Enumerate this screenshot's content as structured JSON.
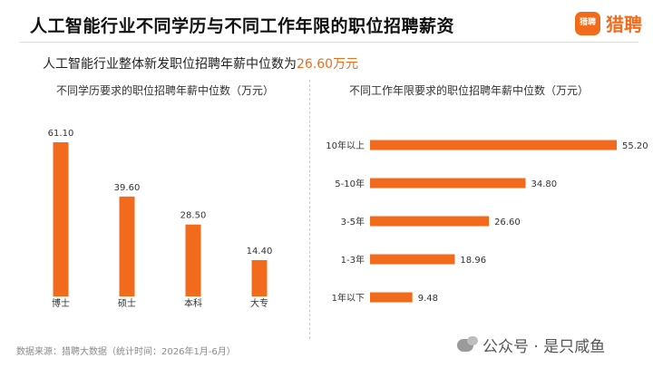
{
  "header": {
    "title": "人工智能行业不同学历与不同工作年限的职位招聘薪资",
    "subtitle_prefix": "人工智能行业整体新发职位招聘年薪中位数为",
    "subtitle_value": "26.60万元"
  },
  "logo": {
    "icon_text": "猎聘",
    "text": "猎聘"
  },
  "colors": {
    "bar": "#f26b1c",
    "accent": "#f26b1c",
    "text": "#222222"
  },
  "footer": {
    "source": "数据来源：猎聘大数据（统计时间：2026年1月-6月）",
    "watermark": "公众号 · 是只咸鱼"
  },
  "chart_data": [
    {
      "type": "bar",
      "orientation": "vertical",
      "title": "不同学历要求的职位招聘年薪中位数（万元）",
      "categories": [
        "博士",
        "硕士",
        "本科",
        "大专"
      ],
      "values": [
        61.1,
        39.6,
        28.5,
        14.4
      ],
      "value_labels": [
        "61.10",
        "39.60",
        "28.50",
        "14.40"
      ],
      "xlabel": "",
      "ylabel": "",
      "grid": false
    },
    {
      "type": "bar",
      "orientation": "horizontal",
      "title": "不同工作年限要求的职位招聘年薪中位数（万元）",
      "categories": [
        "10年以上",
        "5-10年",
        "3-5年",
        "1-3年",
        "1年以下"
      ],
      "values": [
        55.2,
        34.8,
        26.6,
        18.96,
        9.48
      ],
      "value_labels": [
        "55.20",
        "34.80",
        "26.60",
        "18.96",
        "9.48"
      ],
      "xlabel": "",
      "ylabel": "",
      "grid": false
    }
  ]
}
